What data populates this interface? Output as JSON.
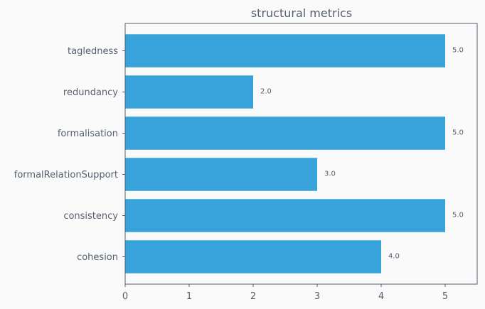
{
  "chart_data": {
    "type": "bar",
    "orientation": "horizontal",
    "title": "structural metrics",
    "xlabel": "",
    "ylabel": "",
    "categories": [
      "tagledness",
      "redundancy",
      "formalisation",
      "formalRelationSupport",
      "consistency",
      "cohesion"
    ],
    "values": [
      5.0,
      2.0,
      5.0,
      3.0,
      5.0,
      4.0
    ],
    "data_labels": [
      "5.0",
      "2.0",
      "5.0",
      "3.0",
      "5.0",
      "4.0"
    ],
    "x_ticks": [
      "0",
      "1",
      "2",
      "3",
      "4",
      "5"
    ],
    "xlim": [
      0,
      5.5
    ],
    "grid": false,
    "legend": "none",
    "colors": {
      "bar": "#38a3da",
      "axis": "#555e6e",
      "background": "#fafafa",
      "text": "#555e6e"
    }
  }
}
